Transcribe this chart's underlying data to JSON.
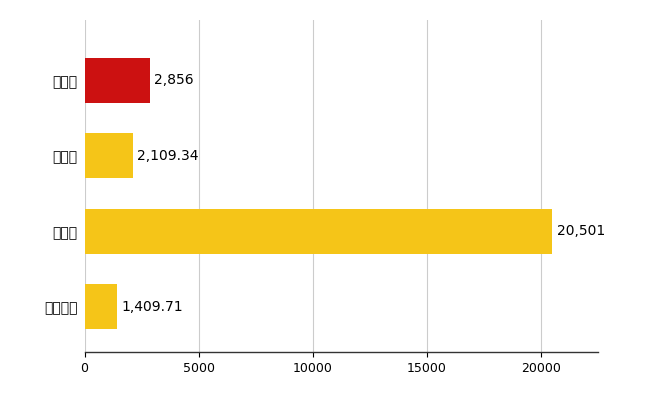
{
  "categories": [
    "三条市",
    "県平均",
    "県最大",
    "全国平均"
  ],
  "values": [
    2856,
    2109.34,
    20501,
    1409.71
  ],
  "labels": [
    "2,856",
    "2,109.34",
    "20,501",
    "1,409.71"
  ],
  "bar_colors": [
    "#cc1111",
    "#f5c518",
    "#f5c518",
    "#f5c518"
  ],
  "xlim": [
    0,
    22500
  ],
  "xticks": [
    0,
    5000,
    10000,
    15000,
    20000
  ],
  "background_color": "#ffffff",
  "grid_color": "#cccccc",
  "label_fontsize": 10,
  "tick_fontsize": 9,
  "bar_height": 0.6
}
